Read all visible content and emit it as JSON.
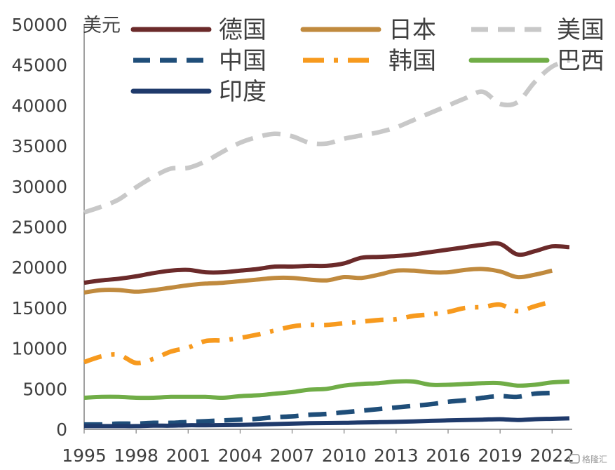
{
  "chart_data": {
    "type": "line",
    "title": "",
    "xlabel": "",
    "ylabel": "美元",
    "ylim": [
      0,
      50000
    ],
    "yticks": [
      "0",
      "5000",
      "10000",
      "15000",
      "20000",
      "25000",
      "30000",
      "35000",
      "40000",
      "45000",
      "50000"
    ],
    "xticks": [
      "1995",
      "1998",
      "2001",
      "2004",
      "2007",
      "2010",
      "2013",
      "2016",
      "2019",
      "2022"
    ],
    "legend_position": "top",
    "grid": false,
    "x": [
      1995,
      1996,
      1997,
      1998,
      1999,
      2000,
      2001,
      2002,
      2003,
      2004,
      2005,
      2006,
      2007,
      2008,
      2009,
      2010,
      2011,
      2012,
      2013,
      2014,
      2015,
      2016,
      2017,
      2018,
      2019,
      2020,
      2021,
      2022,
      2023
    ],
    "series": [
      {
        "name": "德国",
        "color": "#6B2A2A",
        "dash": "solid",
        "values": [
          18100,
          18400,
          18600,
          18900,
          19300,
          19600,
          19700,
          19400,
          19400,
          19600,
          19800,
          20100,
          20100,
          20200,
          20200,
          20500,
          21200,
          21300,
          21400,
          21600,
          21900,
          22200,
          22500,
          22800,
          22900,
          21600,
          22000,
          22600,
          22500
        ]
      },
      {
        "name": "日本",
        "color": "#C08A3E",
        "dash": "solid",
        "values": [
          16900,
          17200,
          17200,
          17000,
          17200,
          17500,
          17800,
          18000,
          18100,
          18300,
          18500,
          18700,
          18700,
          18500,
          18400,
          18800,
          18700,
          19100,
          19600,
          19600,
          19400,
          19400,
          19700,
          19800,
          19500,
          18800,
          19100,
          19600,
          null
        ]
      },
      {
        "name": "美国",
        "color": "#C8C8C8",
        "dash": "dash",
        "values": [
          26800,
          27500,
          28400,
          29900,
          31200,
          32200,
          32300,
          33100,
          34300,
          35400,
          36100,
          36500,
          36200,
          35400,
          35300,
          35900,
          36300,
          36700,
          37300,
          38200,
          39100,
          40000,
          40900,
          41700,
          40200,
          40400,
          42900,
          44800,
          45600
        ]
      },
      {
        "name": "中国",
        "color": "#1F4E79",
        "dash": "dash",
        "values": [
          600,
          600,
          700,
          700,
          800,
          800,
          900,
          1000,
          1100,
          1200,
          1300,
          1500,
          1600,
          1800,
          1900,
          2100,
          2300,
          2500,
          2700,
          2900,
          3100,
          3400,
          3600,
          3900,
          4100,
          4000,
          4400,
          4500,
          null
        ]
      },
      {
        "name": "韩国",
        "color": "#F79A1E",
        "dash": "dashdot",
        "values": [
          8300,
          9000,
          9200,
          8200,
          8700,
          9600,
          10100,
          10900,
          11000,
          11300,
          11700,
          12200,
          12700,
          12900,
          12900,
          13100,
          13300,
          13500,
          13600,
          14000,
          14200,
          14500,
          15000,
          15100,
          15400,
          14600,
          15200,
          15800,
          null
        ]
      },
      {
        "name": "巴西",
        "color": "#70AD47",
        "dash": "solid",
        "values": [
          3900,
          4000,
          4000,
          3900,
          3900,
          4000,
          4000,
          4000,
          3900,
          4100,
          4200,
          4400,
          4600,
          4900,
          5000,
          5400,
          5600,
          5700,
          5900,
          5900,
          5500,
          5500,
          5600,
          5700,
          5700,
          5400,
          5500,
          5800,
          5900
        ]
      },
      {
        "name": "印度",
        "color": "#1F3A6B",
        "dash": "solid",
        "values": [
          400,
          400,
          400,
          400,
          450,
          450,
          500,
          500,
          520,
          550,
          600,
          650,
          700,
          750,
          780,
          800,
          850,
          880,
          920,
          980,
          1050,
          1100,
          1150,
          1200,
          1250,
          1150,
          1250,
          1300,
          1350
        ]
      }
    ]
  },
  "watermark": "格隆汇"
}
